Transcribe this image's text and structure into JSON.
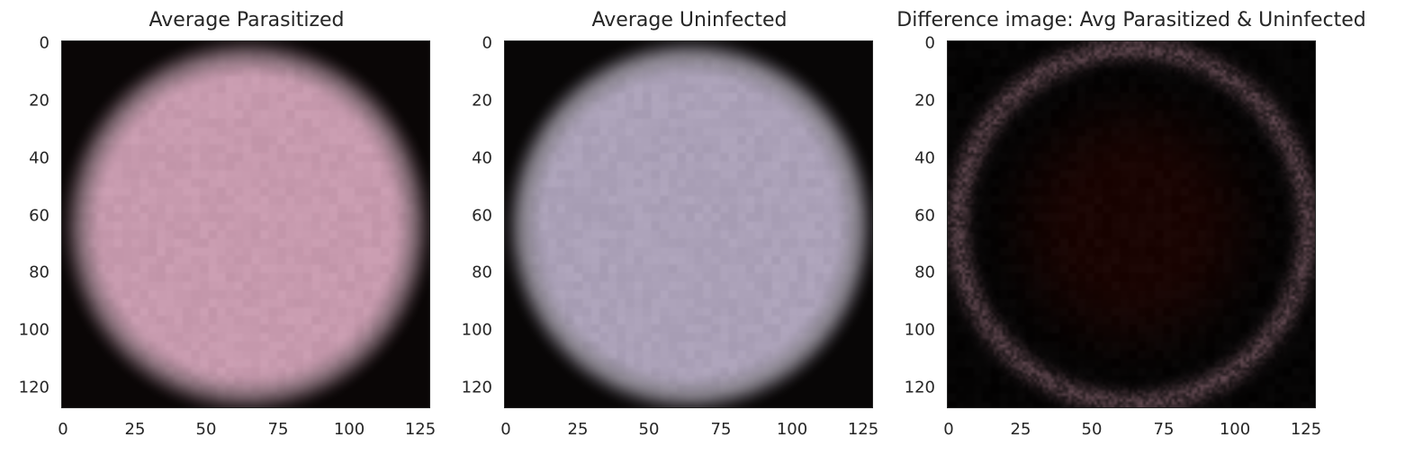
{
  "figure": {
    "panels": [
      {
        "title": "Average Parasitized",
        "image_desc_colors": {
          "cell": "#c79aae",
          "background": "#0a0606"
        },
        "x_ticks": [
          "0",
          "25",
          "50",
          "75",
          "100",
          "125"
        ],
        "y_ticks": [
          "0",
          "20",
          "40",
          "60",
          "80",
          "100",
          "120"
        ]
      },
      {
        "title": "Average Uninfected",
        "image_desc_colors": {
          "cell": "#aba1b8",
          "background": "#080606"
        },
        "x_ticks": [
          "0",
          "25",
          "50",
          "75",
          "100",
          "125"
        ],
        "y_ticks": [
          "0",
          "20",
          "40",
          "60",
          "80",
          "100",
          "120"
        ]
      },
      {
        "title": "Difference image: Avg Parasitized & Uninfected",
        "image_desc_colors": {
          "cell": "#1a0503",
          "background": "#050404"
        },
        "x_ticks": [
          "0",
          "25",
          "50",
          "75",
          "100",
          "125"
        ],
        "y_ticks": [
          "0",
          "20",
          "40",
          "60",
          "80",
          "100",
          "120"
        ]
      }
    ]
  }
}
